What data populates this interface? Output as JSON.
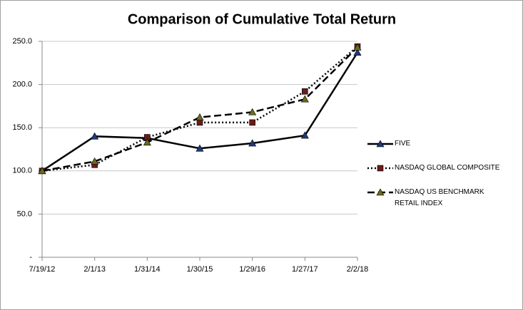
{
  "chart_data": {
    "type": "line",
    "title": "Comparison of Cumulative Total Return",
    "categories": [
      "7/19/12",
      "2/1/13",
      "1/31/14",
      "1/30/15",
      "1/29/16",
      "1/27/17",
      "2/2/18"
    ],
    "series": [
      {
        "name": "FIVE",
        "color": "#000000",
        "dash": "solid",
        "marker": "triangle",
        "marker_color": "#1f3a7a",
        "values": [
          100,
          140,
          138,
          126,
          132,
          141,
          237
        ]
      },
      {
        "name": "NASDAQ GLOBAL COMPOSITE",
        "color": "#000000",
        "dash": "dotted",
        "marker": "square",
        "marker_color": "#6b1a1a",
        "values": [
          100,
          107,
          139,
          156,
          156,
          192,
          244
        ]
      },
      {
        "name": "NASDAQ US BENCHMARK RETAIL INDEX",
        "color": "#000000",
        "dash": "dashed",
        "marker": "triangle",
        "marker_color": "#6b6b1a",
        "values": [
          100,
          111,
          133,
          162,
          168,
          183,
          243
        ]
      }
    ],
    "ylim": [
      0,
      250
    ],
    "yticks": [
      {
        "value": 0,
        "label": "-"
      },
      {
        "value": 50,
        "label": "50.0"
      },
      {
        "value": 100,
        "label": "100.0"
      },
      {
        "value": 150,
        "label": "150.0"
      },
      {
        "value": 200,
        "label": "200.0"
      },
      {
        "value": 250,
        "label": "250.0"
      }
    ],
    "grid": true,
    "legend": "right"
  }
}
